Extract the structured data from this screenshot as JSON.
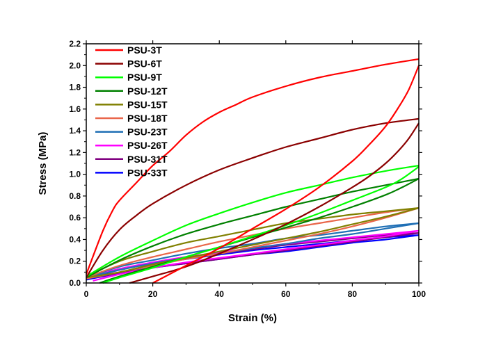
{
  "chart_data": {
    "type": "line",
    "xlabel": "Strain (%)",
    "ylabel": "Stress (MPa)",
    "xlim": [
      0,
      100
    ],
    "ylim": [
      0.0,
      2.2
    ],
    "xticks": [
      "0",
      "20",
      "40",
      "60",
      "80",
      "100"
    ],
    "yticks": [
      "0.0",
      "0.2",
      "0.4",
      "0.6",
      "0.8",
      "1.0",
      "1.2",
      "1.4",
      "1.6",
      "1.8",
      "2.0",
      "2.2"
    ],
    "grid": false,
    "legend_position": "top-left",
    "series": [
      {
        "name": "PSU-3T",
        "color": "#ff0000",
        "loading": [
          [
            0,
            0.08
          ],
          [
            5,
            0.48
          ],
          [
            8,
            0.67
          ],
          [
            10,
            0.76
          ],
          [
            15,
            0.92
          ],
          [
            20,
            1.08
          ],
          [
            25,
            1.21
          ],
          [
            30,
            1.36
          ],
          [
            35,
            1.48
          ],
          [
            40,
            1.57
          ],
          [
            45,
            1.64
          ],
          [
            50,
            1.71
          ],
          [
            60,
            1.81
          ],
          [
            70,
            1.89
          ],
          [
            80,
            1.95
          ],
          [
            90,
            2.01
          ],
          [
            100,
            2.06
          ]
        ],
        "unloading": [
          [
            100,
            2.0
          ],
          [
            97,
            1.78
          ],
          [
            94,
            1.62
          ],
          [
            90,
            1.44
          ],
          [
            85,
            1.27
          ],
          [
            80,
            1.12
          ],
          [
            70,
            0.88
          ],
          [
            60,
            0.68
          ],
          [
            50,
            0.5
          ],
          [
            40,
            0.32
          ],
          [
            30,
            0.16
          ],
          [
            25,
            0.08
          ],
          [
            20,
            0.0
          ]
        ]
      },
      {
        "name": "PSU-6T",
        "color": "#8b0000",
        "loading": [
          [
            0,
            0.05
          ],
          [
            5,
            0.3
          ],
          [
            10,
            0.49
          ],
          [
            15,
            0.62
          ],
          [
            20,
            0.73
          ],
          [
            30,
            0.9
          ],
          [
            40,
            1.04
          ],
          [
            50,
            1.15
          ],
          [
            60,
            1.25
          ],
          [
            70,
            1.33
          ],
          [
            80,
            1.41
          ],
          [
            90,
            1.47
          ],
          [
            100,
            1.51
          ]
        ],
        "unloading": [
          [
            100,
            1.47
          ],
          [
            97,
            1.33
          ],
          [
            94,
            1.22
          ],
          [
            90,
            1.1
          ],
          [
            85,
            0.98
          ],
          [
            80,
            0.88
          ],
          [
            70,
            0.7
          ],
          [
            60,
            0.54
          ],
          [
            50,
            0.4
          ],
          [
            40,
            0.27
          ],
          [
            30,
            0.15
          ],
          [
            20,
            0.06
          ],
          [
            13,
            0.0
          ]
        ]
      },
      {
        "name": "PSU-9T",
        "color": "#00ff00",
        "loading": [
          [
            0,
            0.06
          ],
          [
            10,
            0.24
          ],
          [
            20,
            0.39
          ],
          [
            30,
            0.53
          ],
          [
            40,
            0.64
          ],
          [
            50,
            0.74
          ],
          [
            60,
            0.83
          ],
          [
            70,
            0.9
          ],
          [
            80,
            0.97
          ],
          [
            90,
            1.03
          ],
          [
            100,
            1.08
          ]
        ],
        "unloading": [
          [
            100,
            1.07
          ],
          [
            95,
            0.96
          ],
          [
            90,
            0.88
          ],
          [
            80,
            0.76
          ],
          [
            70,
            0.64
          ],
          [
            60,
            0.53
          ],
          [
            50,
            0.43
          ],
          [
            40,
            0.33
          ],
          [
            30,
            0.24
          ],
          [
            20,
            0.14
          ],
          [
            10,
            0.05
          ],
          [
            5,
            0.0
          ]
        ]
      },
      {
        "name": "PSU-12T",
        "color": "#008000",
        "loading": [
          [
            0,
            0.05
          ],
          [
            10,
            0.21
          ],
          [
            20,
            0.34
          ],
          [
            30,
            0.45
          ],
          [
            40,
            0.54
          ],
          [
            50,
            0.62
          ],
          [
            60,
            0.7
          ],
          [
            70,
            0.77
          ],
          [
            80,
            0.84
          ],
          [
            90,
            0.9
          ],
          [
            100,
            0.96
          ]
        ],
        "unloading": [
          [
            100,
            0.96
          ],
          [
            95,
            0.88
          ],
          [
            90,
            0.81
          ],
          [
            80,
            0.7
          ],
          [
            70,
            0.6
          ],
          [
            60,
            0.51
          ],
          [
            50,
            0.42
          ],
          [
            40,
            0.33
          ],
          [
            30,
            0.24
          ],
          [
            20,
            0.15
          ],
          [
            10,
            0.06
          ],
          [
            4,
            0.0
          ]
        ]
      },
      {
        "name": "PSU-15T",
        "color": "#808000",
        "loading": [
          [
            0,
            0.06
          ],
          [
            10,
            0.2
          ],
          [
            20,
            0.29
          ],
          [
            30,
            0.37
          ],
          [
            40,
            0.43
          ],
          [
            50,
            0.49
          ],
          [
            60,
            0.55
          ],
          [
            70,
            0.59
          ],
          [
            80,
            0.63
          ],
          [
            90,
            0.66
          ],
          [
            100,
            0.69
          ]
        ],
        "unloading": [
          [
            100,
            0.69
          ],
          [
            90,
            0.61
          ],
          [
            80,
            0.54
          ],
          [
            70,
            0.47
          ],
          [
            60,
            0.41
          ],
          [
            50,
            0.35
          ],
          [
            40,
            0.29
          ],
          [
            30,
            0.23
          ],
          [
            20,
            0.17
          ],
          [
            10,
            0.1
          ],
          [
            0,
            0.05
          ]
        ]
      },
      {
        "name": "PSU-18T",
        "color": "#e9664a",
        "loading": [
          [
            0,
            0.05
          ],
          [
            10,
            0.16
          ],
          [
            20,
            0.24
          ],
          [
            30,
            0.31
          ],
          [
            40,
            0.38
          ],
          [
            50,
            0.44
          ],
          [
            60,
            0.5
          ],
          [
            70,
            0.55
          ],
          [
            80,
            0.6
          ],
          [
            90,
            0.65
          ],
          [
            100,
            0.69
          ]
        ],
        "unloading": [
          [
            100,
            0.69
          ],
          [
            90,
            0.6
          ],
          [
            80,
            0.52
          ],
          [
            70,
            0.45
          ],
          [
            60,
            0.39
          ],
          [
            50,
            0.33
          ],
          [
            40,
            0.27
          ],
          [
            30,
            0.22
          ],
          [
            20,
            0.16
          ],
          [
            10,
            0.1
          ],
          [
            0,
            0.04
          ]
        ]
      },
      {
        "name": "PSU-23T",
        "color": "#1f6fb5",
        "loading": [
          [
            0,
            0.05
          ],
          [
            10,
            0.15
          ],
          [
            20,
            0.21
          ],
          [
            30,
            0.27
          ],
          [
            40,
            0.32
          ],
          [
            50,
            0.36
          ],
          [
            60,
            0.41
          ],
          [
            70,
            0.44
          ],
          [
            80,
            0.48
          ],
          [
            90,
            0.52
          ],
          [
            100,
            0.55
          ]
        ],
        "unloading": [
          [
            100,
            0.55
          ],
          [
            90,
            0.5
          ],
          [
            80,
            0.45
          ],
          [
            70,
            0.41
          ],
          [
            60,
            0.36
          ],
          [
            50,
            0.32
          ],
          [
            40,
            0.27
          ],
          [
            30,
            0.23
          ],
          [
            20,
            0.18
          ],
          [
            10,
            0.12
          ],
          [
            0,
            0.05
          ]
        ]
      },
      {
        "name": "PSU-26T",
        "color": "#ff00ff",
        "loading": [
          [
            0,
            0.05
          ],
          [
            10,
            0.13
          ],
          [
            20,
            0.19
          ],
          [
            30,
            0.24
          ],
          [
            40,
            0.28
          ],
          [
            50,
            0.32
          ],
          [
            60,
            0.36
          ],
          [
            70,
            0.39
          ],
          [
            80,
            0.42
          ],
          [
            90,
            0.45
          ],
          [
            100,
            0.48
          ]
        ],
        "unloading": [
          [
            100,
            0.48
          ],
          [
            90,
            0.43
          ],
          [
            80,
            0.39
          ],
          [
            70,
            0.35
          ],
          [
            60,
            0.31
          ],
          [
            50,
            0.27
          ],
          [
            40,
            0.23
          ],
          [
            30,
            0.19
          ],
          [
            20,
            0.14
          ],
          [
            10,
            0.08
          ],
          [
            2,
            0.02
          ]
        ]
      },
      {
        "name": "PSU-31T",
        "color": "#800080",
        "loading": [
          [
            0,
            0.05
          ],
          [
            10,
            0.13
          ],
          [
            20,
            0.18
          ],
          [
            30,
            0.23
          ],
          [
            40,
            0.27
          ],
          [
            50,
            0.31
          ],
          [
            60,
            0.35
          ],
          [
            70,
            0.38
          ],
          [
            80,
            0.41
          ],
          [
            90,
            0.44
          ],
          [
            100,
            0.46
          ]
        ],
        "unloading": [
          [
            100,
            0.46
          ],
          [
            90,
            0.42
          ],
          [
            80,
            0.38
          ],
          [
            70,
            0.34
          ],
          [
            60,
            0.3
          ],
          [
            50,
            0.26
          ],
          [
            40,
            0.22
          ],
          [
            30,
            0.18
          ],
          [
            20,
            0.14
          ],
          [
            10,
            0.09
          ],
          [
            0,
            0.04
          ]
        ]
      },
      {
        "name": "PSU-33T",
        "color": "#0000ff",
        "loading": [
          [
            0,
            0.04
          ],
          [
            10,
            0.12
          ],
          [
            20,
            0.18
          ],
          [
            30,
            0.22
          ],
          [
            40,
            0.26
          ],
          [
            50,
            0.3
          ],
          [
            60,
            0.33
          ],
          [
            70,
            0.36
          ],
          [
            80,
            0.39
          ],
          [
            90,
            0.42
          ],
          [
            100,
            0.44
          ]
        ],
        "unloading": [
          [
            100,
            0.44
          ],
          [
            90,
            0.4
          ],
          [
            80,
            0.37
          ],
          [
            70,
            0.33
          ],
          [
            60,
            0.29
          ],
          [
            50,
            0.26
          ],
          [
            40,
            0.22
          ],
          [
            30,
            0.18
          ],
          [
            20,
            0.14
          ],
          [
            10,
            0.09
          ],
          [
            0,
            0.03
          ]
        ]
      }
    ]
  }
}
